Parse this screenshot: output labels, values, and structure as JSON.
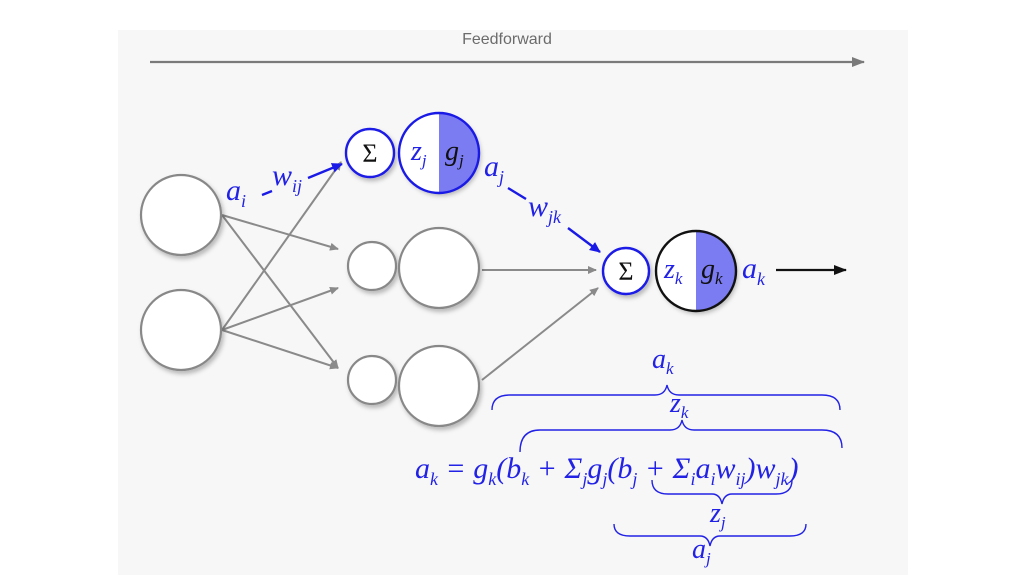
{
  "caption": "Feedforward",
  "labels": {
    "a_i": "a",
    "a_i_sub": "i",
    "w_ij": "w",
    "w_ij_sub": "ij",
    "sigma": "Σ",
    "z_j": "z",
    "z_j_sub": "j",
    "g_j": "g",
    "g_j_sub": "j",
    "a_j": "a",
    "a_j_sub": "j",
    "w_jk": "w",
    "w_jk_sub": "jk",
    "z_k": "z",
    "z_k_sub": "k",
    "g_k": "g",
    "g_k_sub": "k",
    "a_k": "a",
    "a_k_sub": "k"
  },
  "braces": {
    "top_a": "a",
    "top_a_sub": "k",
    "top_z": "z",
    "top_z_sub": "k",
    "bottom_z": "z",
    "bottom_z_sub": "j",
    "bottom_a": "a",
    "bottom_a_sub": "j"
  },
  "equation": "a<sub>k</sub> = g<sub>k</sub>(b<sub>k</sub> + Σ<sub>j</sub>g<sub>j</sub>(b<sub>j</sub> + Σ<sub>i</sub>a<sub>i</sub>w<sub>ij</sub>)w<sub>jk</sub>)",
  "colors": {
    "accent": "#2222e6",
    "fill": "#7b7bf2",
    "edge": "#8a8a8a"
  }
}
